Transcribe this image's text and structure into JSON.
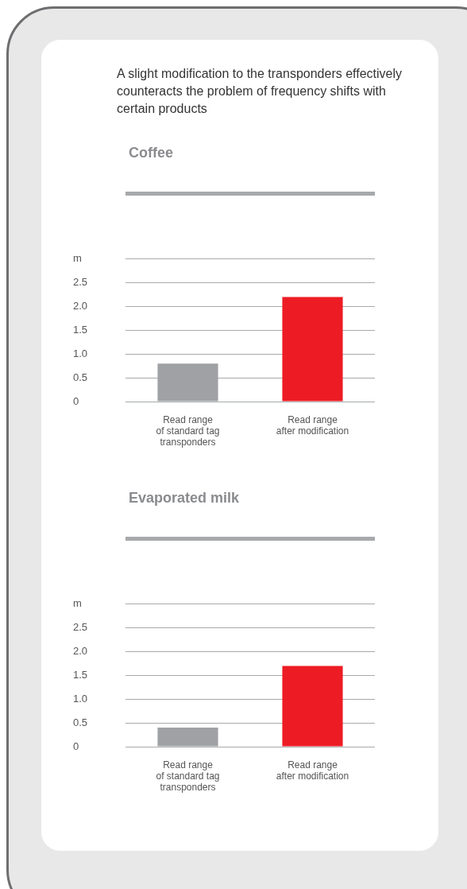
{
  "chart_data": [
    {
      "type": "bar",
      "title": "Coffee",
      "annotations": [
        "A slight modification to the transponders effectively counteracts the problem of frequency shifts with certain products"
      ],
      "categories": [
        "Read range\nof standard tag\ntransponders",
        "Read range\nafter modification"
      ],
      "values": [
        0.8,
        2.2
      ],
      "colors": [
        "#a0a1a4",
        "#ed1c24"
      ],
      "ylim": [
        0,
        3
      ],
      "yticks": [
        0,
        0.5,
        {
          "value": 1,
          "label": "1.0"
        },
        1.5,
        {
          "value": 2,
          "label": "2.0"
        },
        2.5,
        {
          "value": 3,
          "label": "m"
        }
      ],
      "grid": "y"
    },
    {
      "type": "bar",
      "title": "Evaporated milk",
      "categories": [
        "Read range\nof standard tag\ntransponders",
        "Read range\nafter modification"
      ],
      "values": [
        0.4,
        1.7
      ],
      "colors": [
        "#a0a1a4",
        "#ed1c24"
      ],
      "ylim": [
        0,
        3
      ],
      "yticks": [
        0,
        0.5,
        {
          "value": 1,
          "label": "1.0"
        },
        1.5,
        {
          "value": 2,
          "label": "2.0"
        },
        2.5,
        {
          "value": 3,
          "label": "m"
        }
      ],
      "grid": "y"
    }
  ]
}
